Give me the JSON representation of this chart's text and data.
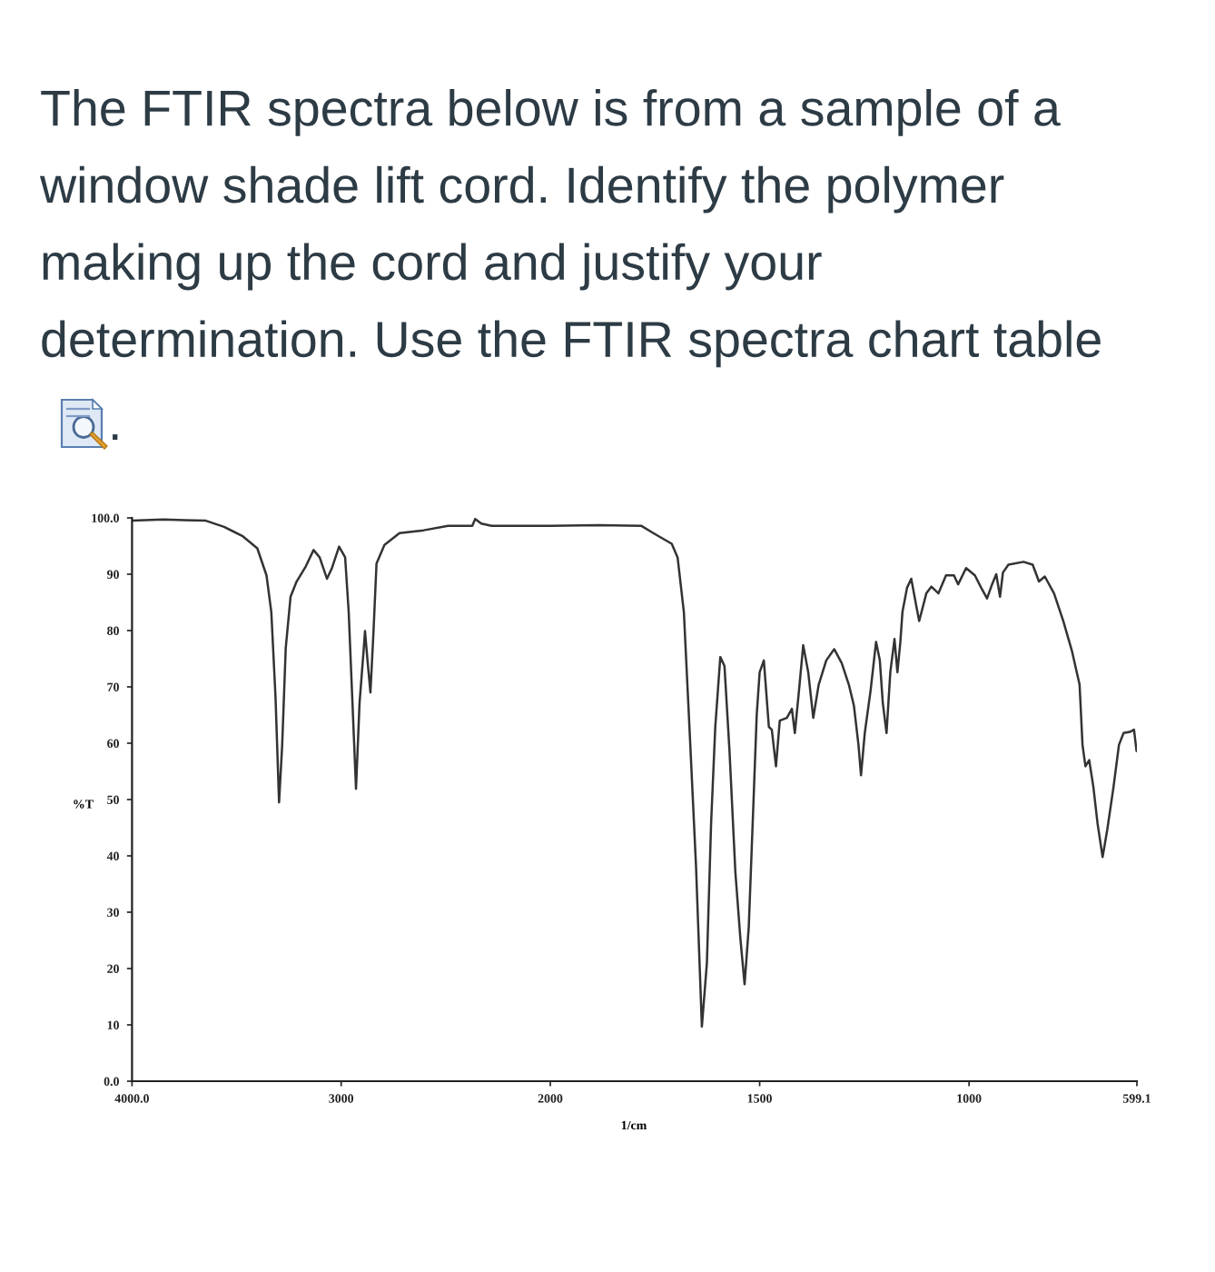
{
  "chart_data": [
    {
      "type": "line",
      "title": "The FTIR spectra below is from a sample of a\nwindow shade lift cord. Identify the polymer\nmaking up the cord and justify your\ndetermination. Use the FTIR spectra chart table",
      "annotations": [
        "."
      ],
      "ylabel": "%T",
      "x": [
        4000,
        3850,
        3750,
        3647,
        3560,
        3473,
        3401,
        3357,
        3334,
        3314,
        3297,
        3282,
        3265,
        3242,
        3213,
        3169,
        3132,
        3103,
        3068,
        3045,
        3010,
        2981,
        2964,
        2946,
        2929,
        2912,
        2894,
        2886,
        2874,
        2860,
        2845,
        2831,
        2793,
        2721,
        2605,
        2489,
        2373,
        2359,
        2330,
        2281,
        2026,
        2000
      ],
      "values": [
        99.5,
        99.7,
        99.6,
        99.5,
        98.4,
        96.8,
        94.6,
        89.8,
        83.3,
        68.3,
        49.5,
        59.7,
        76.9,
        86,
        88.7,
        91.4,
        94.3,
        93,
        89.2,
        91,
        94.9,
        93,
        83.3,
        67.2,
        51.9,
        67.2,
        75.8,
        79.9,
        74.7,
        69,
        80.1,
        91.9,
        95.2,
        97.3,
        97.8,
        98.6,
        98.6,
        99.8,
        99,
        98.6,
        98.6,
        98.6
      ],
      "color": "#333333",
      "line_style": "solid",
      "xlim": [
        4000,
        2000
      ],
      "xticks": [
        {
          "value": 4000,
          "label": "4000.0"
        },
        3000,
        2000
      ],
      "ylim": [
        0,
        100
      ],
      "yticks": [
        {
          "value": 0,
          "label": "0.0"
        },
        10,
        20,
        30,
        40,
        50,
        60,
        70,
        80,
        90,
        {
          "value": 100,
          "label": "100.0"
        }
      ],
      "grid": false
    },
    {
      "type": "line",
      "xlabel": "1/cm",
      "x": [
        2000,
        1884,
        1783,
        1754,
        1710,
        1696,
        1681,
        1667,
        1652,
        1638,
        1626,
        1616,
        1606,
        1594,
        1584,
        1572,
        1558,
        1546,
        1536,
        1526,
        1514,
        1507,
        1500,
        1490,
        1478,
        1471,
        1461,
        1452,
        1435,
        1423,
        1416,
        1406,
        1396,
        1384,
        1372,
        1359,
        1341,
        1322,
        1304,
        1287,
        1275,
        1264,
        1258,
        1249,
        1235,
        1222,
        1213,
        1206,
        1197,
        1188,
        1178,
        1171,
        1164,
        1159,
        1148,
        1138,
        1126,
        1119,
        1102,
        1090,
        1073,
        1055,
        1036,
        1026,
        1007,
        986,
        971,
        957,
        945,
        935,
        926,
        919,
        906,
        870,
        848,
        833,
        819,
        797,
        775,
        754,
        736,
        729,
        722,
        713,
        703,
        693,
        681,
        670,
        655,
        642,
        631,
        616,
        606,
        600
      ],
      "values": [
        98.6,
        98.7,
        98.6,
        97.3,
        95.4,
        93,
        83.3,
        61.8,
        38.2,
        9.7,
        21,
        45.7,
        62.9,
        75.3,
        73.7,
        58.6,
        37.1,
        25.3,
        17.2,
        27.4,
        51.1,
        65.1,
        72.6,
        74.7,
        62.9,
        62.4,
        55.9,
        64,
        64.5,
        66.1,
        61.8,
        69.4,
        77.4,
        72.6,
        64.5,
        70.4,
        74.7,
        76.7,
        74.2,
        70.4,
        66.7,
        59.7,
        54.3,
        61.8,
        69.4,
        78,
        74.7,
        67.2,
        61.8,
        72.6,
        78.5,
        72.6,
        78,
        83.3,
        87.6,
        89.2,
        84.4,
        81.7,
        86.6,
        87.8,
        86.6,
        89.8,
        89.8,
        88.2,
        91.1,
        89.8,
        87.6,
        85.7,
        88.2,
        90,
        86,
        90.3,
        91.7,
        92.2,
        91.7,
        88.7,
        89.6,
        86.6,
        81.7,
        76.3,
        70.4,
        59.7,
        55.9,
        57,
        52.2,
        45.7,
        39.8,
        44.6,
        52.2,
        59.7,
        61.8,
        62,
        62.4,
        58.6
      ],
      "color": "#333333",
      "line_style": "solid",
      "xlim": [
        2000,
        599.1
      ],
      "xticks": [
        1500,
        1000,
        599.1
      ],
      "ylim": [
        0,
        100
      ],
      "tick_labels": "x",
      "grid": false
    }
  ]
}
